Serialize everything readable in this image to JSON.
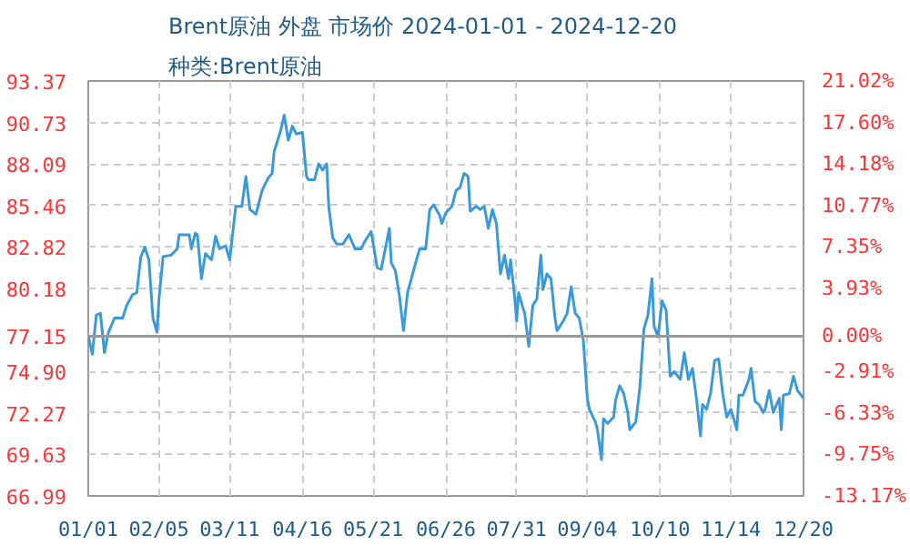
{
  "chart_data": {
    "type": "line",
    "title": "Brent原油 外盘 市场价 2024-01-01 - 2024-12-20",
    "subtitle": "种类:Brent原油",
    "x": [
      "2024-01-01",
      "2024-01-03",
      "2024-01-05",
      "2024-01-07",
      "2024-01-09",
      "2024-01-11",
      "2024-01-14",
      "2024-01-18",
      "2024-01-20",
      "2024-01-23",
      "2024-01-25",
      "2024-01-27",
      "2024-01-29",
      "2024-01-31",
      "2024-02-02",
      "2024-02-04",
      "2024-02-05",
      "2024-02-07",
      "2024-02-11",
      "2024-02-14",
      "2024-02-15",
      "2024-02-20",
      "2024-02-21",
      "2024-02-23",
      "2024-02-24",
      "2024-02-26",
      "2024-02-28",
      "2024-03-02",
      "2024-03-04",
      "2024-03-06",
      "2024-03-09",
      "2024-03-11",
      "2024-03-14",
      "2024-03-17",
      "2024-03-19",
      "2024-03-21",
      "2024-03-24",
      "2024-03-27",
      "2024-03-30",
      "2024-04-01",
      "2024-04-02",
      "2024-04-05",
      "2024-04-07",
      "2024-04-09",
      "2024-04-11",
      "2024-04-13",
      "2024-04-16",
      "2024-04-18",
      "2024-04-19",
      "2024-04-22",
      "2024-04-24",
      "2024-04-26",
      "2024-04-28",
      "2024-04-29",
      "2024-05-01",
      "2024-05-03",
      "2024-05-06",
      "2024-05-09",
      "2024-05-12",
      "2024-05-15",
      "2024-05-17",
      "2024-05-20",
      "2024-05-23",
      "2024-05-25",
      "2024-05-27",
      "2024-05-29",
      "2024-05-30",
      "2024-06-01",
      "2024-06-03",
      "2024-06-05",
      "2024-06-07",
      "2024-06-11",
      "2024-06-13",
      "2024-06-16",
      "2024-06-18",
      "2024-06-20",
      "2024-06-23",
      "2024-06-24",
      "2024-06-26",
      "2024-06-29",
      "2024-07-01",
      "2024-07-03",
      "2024-07-05",
      "2024-07-07",
      "2024-07-08",
      "2024-07-11",
      "2024-07-13",
      "2024-07-15",
      "2024-07-17",
      "2024-07-19",
      "2024-07-21",
      "2024-07-23",
      "2024-07-25",
      "2024-07-27",
      "2024-07-28",
      "2024-07-30",
      "2024-07-31",
      "2024-08-01",
      "2024-08-03",
      "2024-08-04",
      "2024-08-06",
      "2024-08-08",
      "2024-08-10",
      "2024-08-12",
      "2024-08-13",
      "2024-08-15",
      "2024-08-17",
      "2024-08-19",
      "2024-08-20",
      "2024-08-23",
      "2024-08-25",
      "2024-08-27",
      "2024-08-29",
      "2024-08-31",
      "2024-09-02",
      "2024-09-04",
      "2024-09-05",
      "2024-09-08",
      "2024-09-09",
      "2024-09-11",
      "2024-09-12",
      "2024-09-14",
      "2024-09-17",
      "2024-09-18",
      "2024-09-20",
      "2024-09-22",
      "2024-09-24",
      "2024-09-25",
      "2024-09-28",
      "2024-09-30",
      "2024-10-02",
      "2024-10-04",
      "2024-10-06",
      "2024-10-07",
      "2024-10-09",
      "2024-10-11",
      "2024-10-13",
      "2024-10-15",
      "2024-10-17",
      "2024-10-20",
      "2024-10-22",
      "2024-10-24",
      "2024-10-26",
      "2024-10-28",
      "2024-10-30",
      "2024-10-31",
      "2024-11-02",
      "2024-11-04",
      "2024-11-06",
      "2024-11-08",
      "2024-11-10",
      "2024-11-12",
      "2024-11-14",
      "2024-11-15",
      "2024-11-17",
      "2024-11-18",
      "2024-11-20",
      "2024-11-23",
      "2024-11-24",
      "2024-11-26",
      "2024-11-28",
      "2024-11-30",
      "2024-12-01",
      "2024-12-03",
      "2024-12-05",
      "2024-12-08",
      "2024-12-09",
      "2024-12-10",
      "2024-12-13",
      "2024-12-15",
      "2024-12-17",
      "2024-12-20"
    ],
    "series": [
      {
        "color": "#3a9ad9",
        "values": [
          77.2,
          76.0,
          78.5,
          78.6,
          76.1,
          77.4,
          78.3,
          78.3,
          79.1,
          79.8,
          79.9,
          82.2,
          82.8,
          82.0,
          78.3,
          77.4,
          79.5,
          82.2,
          82.3,
          82.7,
          83.6,
          83.6,
          82.7,
          83.7,
          83.6,
          80.8,
          82.4,
          82.0,
          83.5,
          82.7,
          82.9,
          82.0,
          85.4,
          85.4,
          87.3,
          85.2,
          84.9,
          86.4,
          87.2,
          87.5,
          88.9,
          90.1,
          91.2,
          89.6,
          90.5,
          90.0,
          90.1,
          87.3,
          87.1,
          87.1,
          88.1,
          87.7,
          88.1,
          85.4,
          83.4,
          83.0,
          83.0,
          83.6,
          82.7,
          82.7,
          83.2,
          83.8,
          81.5,
          81.4,
          82.7,
          84.0,
          81.8,
          81.3,
          79.7,
          77.5,
          79.9,
          81.8,
          82.7,
          82.7,
          85.2,
          85.5,
          84.8,
          84.3,
          85.0,
          85.4,
          86.4,
          86.6,
          87.5,
          87.3,
          85.1,
          85.4,
          85.2,
          85.4,
          84.0,
          85.2,
          84.3,
          81.1,
          82.3,
          80.8,
          82.0,
          79.7,
          78.1,
          79.9,
          79.0,
          78.6,
          76.5,
          79.1,
          79.5,
          82.3,
          80.1,
          81.1,
          80.8,
          78.3,
          77.5,
          78.1,
          78.6,
          80.3,
          78.6,
          78.3,
          76.9,
          73.2,
          72.5,
          71.7,
          71.2,
          69.3,
          71.9,
          71.6,
          72.0,
          73.1,
          74.0,
          73.5,
          72.3,
          71.2,
          71.7,
          73.9,
          77.6,
          78.5,
          80.8,
          77.8,
          77.1,
          79.4,
          78.8,
          74.6,
          74.9,
          74.4,
          76.1,
          74.4,
          75.1,
          73.2,
          70.8,
          72.8,
          72.5,
          73.5,
          75.6,
          75.7,
          73.5,
          72.0,
          72.5,
          72.1,
          71.2,
          73.4,
          73.4,
          74.4,
          75.1,
          73.0,
          72.8,
          72.3,
          72.5,
          73.7,
          72.3,
          73.2,
          71.2,
          73.4,
          73.5,
          74.6,
          73.7,
          73.2
        ]
      }
    ],
    "xlim": [
      "2024-01-01",
      "2024-12-20"
    ],
    "xticks": [
      {
        "value": "2024-01-01",
        "label": "01/01"
      },
      {
        "value": "2024-02-05",
        "label": "02/05"
      },
      {
        "value": "2024-03-11",
        "label": "03/11"
      },
      {
        "value": "2024-04-16",
        "label": "04/16"
      },
      {
        "value": "2024-05-21",
        "label": "05/21"
      },
      {
        "value": "2024-06-26",
        "label": "06/26"
      },
      {
        "value": "2024-07-31",
        "label": "07/31"
      },
      {
        "value": "2024-09-04",
        "label": "09/04"
      },
      {
        "value": "2024-10-10",
        "label": "10/10"
      },
      {
        "value": "2024-11-14",
        "label": "11/14"
      },
      {
        "value": "2024-12-20",
        "label": "12/20"
      }
    ],
    "ylim": [
      66.99,
      93.37
    ],
    "yticks": [
      66.99,
      69.63,
      72.27,
      {
        "value": 74.9,
        "label": "74.90"
      },
      77.15,
      80.18,
      82.82,
      85.46,
      88.09,
      90.73,
      93.37
    ],
    "y2lim": [
      -13.17,
      21.02
    ],
    "y2ticks": [
      {
        "value": -13.17,
        "label": "-13.17%"
      },
      {
        "value": -9.75,
        "label": "-9.75%"
      },
      {
        "value": -6.33,
        "label": "-6.33%"
      },
      {
        "value": -2.91,
        "label": "-2.91%"
      },
      {
        "value": 0,
        "label": "0.00%"
      },
      {
        "value": 3.93,
        "label": "3.93%"
      },
      {
        "value": 7.35,
        "label": "7.35%"
      },
      {
        "value": 10.77,
        "label": "10.77%"
      },
      {
        "value": 14.18,
        "label": "14.18%"
      },
      {
        "value": 17.6,
        "label": "17.60%"
      },
      {
        "value": 21.02,
        "label": "21.02%"
      }
    ],
    "ref_lines": [
      {
        "axis": "y",
        "value": 77.15,
        "color": "#999999"
      }
    ],
    "grid": true,
    "marker": "none",
    "line_style": "solid"
  }
}
